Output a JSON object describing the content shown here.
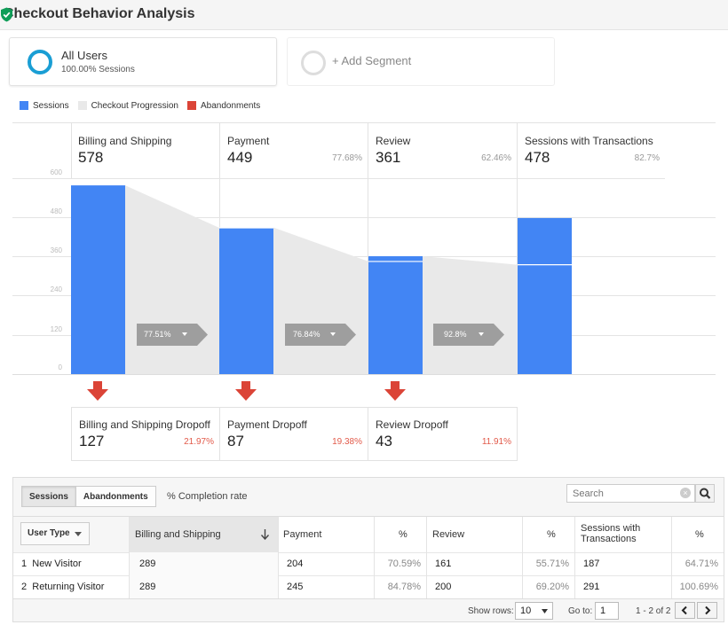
{
  "header": {
    "title": "Checkout Behavior Analysis",
    "verified_icon": "shield-check-icon"
  },
  "segments": {
    "all": {
      "name": "All Users",
      "sub": "100.00% Sessions",
      "icon": "segment-ring-icon"
    },
    "add": {
      "label": "+ Add Segment",
      "icon": "empty-ring-icon"
    }
  },
  "legend": [
    {
      "label": "Sessions",
      "color": "#4285f4"
    },
    {
      "label": "Checkout Progression",
      "color": "#e9e9e9"
    },
    {
      "label": "Abandonments",
      "color": "#db4437"
    }
  ],
  "funnel": {
    "y_ticks": [
      "600",
      "480",
      "360",
      "240",
      "120",
      "0"
    ],
    "ylim": [
      0,
      600
    ],
    "steps": [
      {
        "name": "Billing and Shipping",
        "value": "578",
        "pct": "",
        "sessions": 578,
        "carried": 0
      },
      {
        "name": "Payment",
        "value": "449",
        "pct": "77.68%",
        "sessions": 449,
        "carried": 448
      },
      {
        "name": "Review",
        "value": "361",
        "pct": "62.46%",
        "sessions": 361,
        "carried": 345
      },
      {
        "name": "Sessions with Transactions",
        "value": "478",
        "pct": "82.7%",
        "sessions": 478,
        "carried": 335
      }
    ],
    "progressions": [
      "77.51%",
      "76.84%",
      "92.8%"
    ],
    "dropoffs": [
      {
        "name": "Billing and Shipping Dropoff",
        "value": "127",
        "pct": "21.97%"
      },
      {
        "name": "Payment Dropoff",
        "value": "87",
        "pct": "19.38%"
      },
      {
        "name": "Review Dropoff",
        "value": "43",
        "pct": "11.91%"
      }
    ]
  },
  "table": {
    "toggles": [
      "Sessions",
      "Abandonments"
    ],
    "completion_label": "% Completion rate",
    "search_placeholder": "Search",
    "dimension_label": "User Type",
    "headers": {
      "billing": "Billing and Shipping",
      "payment": "Payment",
      "pct": "%",
      "review": "Review",
      "transactions": "Sessions with Transactions"
    },
    "rows": [
      {
        "n": "1",
        "type": "New Visitor",
        "billing": "289",
        "payment": "204",
        "payment_pct": "70.59%",
        "review": "161",
        "review_pct": "55.71%",
        "trans": "187",
        "trans_pct": "64.71%"
      },
      {
        "n": "2",
        "type": "Returning Visitor",
        "billing": "289",
        "payment": "245",
        "payment_pct": "84.78%",
        "review": "200",
        "review_pct": "69.20%",
        "trans": "291",
        "trans_pct": "100.69%"
      }
    ],
    "footer": {
      "show_rows_label": "Show rows:",
      "show_rows_value": "10",
      "goto_label": "Go to:",
      "goto_value": "1",
      "range": "1 - 2 of 2"
    }
  }
}
